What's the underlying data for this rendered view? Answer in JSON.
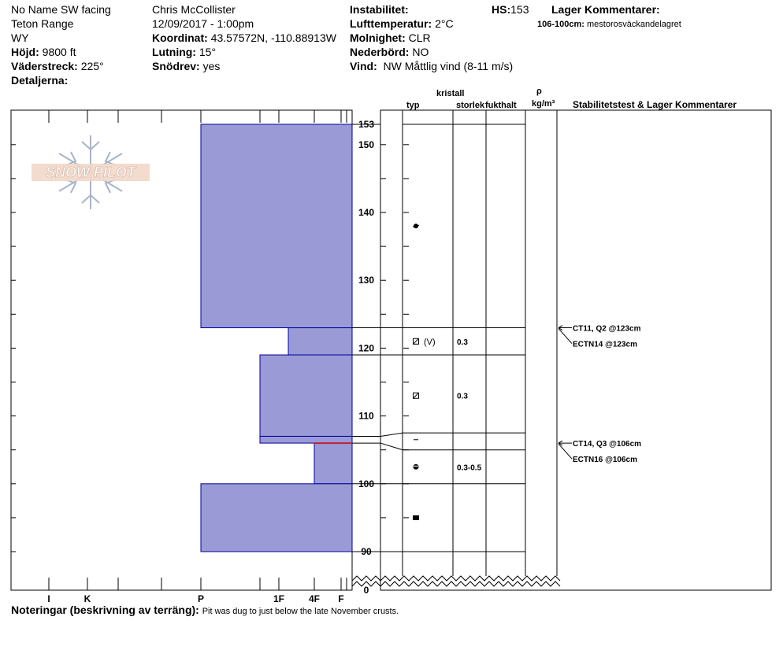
{
  "header": {
    "location": "No Name SW facing",
    "range": "Teton Range",
    "state": "WY",
    "elevation_label": "Höjd:",
    "elevation_value": "9800 ft",
    "aspect_label": "Väderstreck:",
    "aspect_value": "225°",
    "details_label": "Detaljerna:",
    "observer": "Chris McCollister",
    "datetime": "12/09/2017 - 1:00pm",
    "coord_label": "Koordinat:",
    "coord_value": "43.57572N, -110.88913W",
    "slope_label": "Lutning:",
    "slope_value": "15°",
    "drift_label": "Snödrev:",
    "drift_value": "yes",
    "instability_label": "Instabilitet:",
    "airtemp_label": "Lufttemperatur:",
    "airtemp_value": "2°C",
    "sky_label": "Molnighet:",
    "sky_value": "CLR",
    "precip_label": "Nederbörd:",
    "precip_value": "NO",
    "wind_label": "Vind:",
    "wind_value": "NW Måttlig vind (8-11 m/s)",
    "hs_label": "HS:",
    "hs_value": "153",
    "layer_comments_label": "Lager Kommentarer:",
    "layer_comment_range": "106-100cm:",
    "layer_comment_text": "mestorosväckandelagret"
  },
  "logo": {
    "text": "SNOW PILOT"
  },
  "columns": {
    "crystal": "kristall",
    "type": "typ",
    "size": "storlek",
    "moisture": "fukthalt",
    "rho": "ρ",
    "density_unit": "kg/m³",
    "stability": "Stabilitetstest & Lager Kommentarer"
  },
  "footer": {
    "notes_label": "Noteringar (beskrivning av terräng):",
    "notes_value": "Pit was dug to just below the late November crusts."
  },
  "chart_data": {
    "type": "bar",
    "description_axis": "height_cm",
    "hardness_ticks": [
      "I",
      "K",
      "P",
      "1F",
      "4F",
      "F"
    ],
    "height_labels": [
      153,
      150,
      140,
      130,
      120,
      110,
      100,
      90,
      0
    ],
    "snow_height_cm": 153,
    "hardness_layers": [
      {
        "top": 153,
        "bottom": 123,
        "hardness": "P"
      },
      {
        "top": 123,
        "bottom": 119,
        "hardness": "4F-"
      },
      {
        "top": 119,
        "bottom": 107,
        "hardness": "1F+"
      },
      {
        "top": 107,
        "bottom": 106,
        "hardness": "1F+"
      },
      {
        "top": 106,
        "bottom": 100,
        "hardness": "4F"
      },
      {
        "top": 100,
        "bottom": 90,
        "hardness": "P"
      }
    ],
    "crystal_layers": [
      {
        "top": 153,
        "bottom": 123,
        "symbol": "graupel-icon",
        "at": 138,
        "size": ""
      },
      {
        "top": 123,
        "bottom": 119,
        "symbol": "faceted-round-icon",
        "at": 121,
        "size": "0.3",
        "extra": "(V)"
      },
      {
        "top": 119,
        "bottom": 107.5,
        "symbol": "faceted-round-icon",
        "at": 113,
        "size": "0.3"
      },
      {
        "top": 107.5,
        "bottom": 105,
        "symbol": "ice-layer-icon",
        "at": 106.5,
        "size": ""
      },
      {
        "top": 105,
        "bottom": 100,
        "symbol": "melt-freeze-icon",
        "at": 102.5,
        "size": "0.3-0.5"
      },
      {
        "top": 100,
        "bottom": 90,
        "symbol": "melt-freeze-crust-icon",
        "at": 95,
        "size": ""
      }
    ],
    "stability_tests": [
      {
        "depth_cm": 123,
        "results": [
          "CT11, Q2 @123cm",
          "ECTN14 @123cm"
        ]
      },
      {
        "depth_cm": 106,
        "results": [
          "CT14, Q3 @106cm",
          "ECTN16 @106cm"
        ]
      }
    ],
    "colors": {
      "layer_fill": "#9a9ad6",
      "layer_stroke": "#00009a",
      "weak_layer": "#c0203a"
    }
  }
}
